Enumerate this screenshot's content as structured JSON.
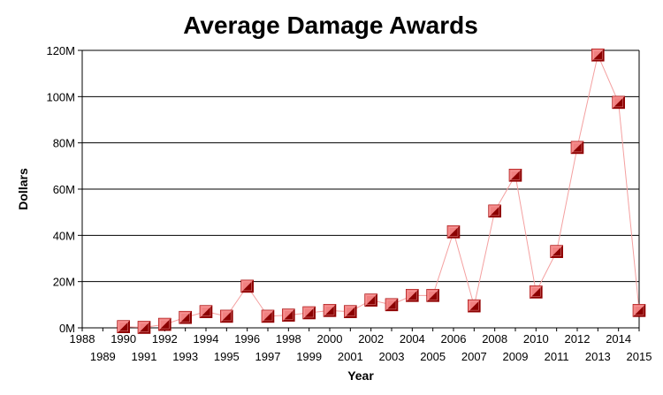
{
  "chart_data": {
    "type": "line",
    "title": "Average Damage Awards",
    "xlabel": "Year",
    "ylabel": "Dollars",
    "xlim": [
      1988,
      2015
    ],
    "ylim": [
      0,
      120000000
    ],
    "x_ticks": [
      "1988",
      "1989",
      "1990",
      "1991",
      "1992",
      "1993",
      "1994",
      "1995",
      "1996",
      "1997",
      "1998",
      "1999",
      "2000",
      "2001",
      "2002",
      "2003",
      "2004",
      "2005",
      "2006",
      "2007",
      "2008",
      "2009",
      "2010",
      "2011",
      "2012",
      "2013",
      "2014",
      "2015"
    ],
    "y_ticks": [
      {
        "value": 0,
        "label": "0M"
      },
      {
        "value": 20000000,
        "label": "20M"
      },
      {
        "value": 40000000,
        "label": "40M"
      },
      {
        "value": 60000000,
        "label": "60M"
      },
      {
        "value": 80000000,
        "label": "80M"
      },
      {
        "value": 100000000,
        "label": "100M"
      },
      {
        "value": 120000000,
        "label": "120M"
      }
    ],
    "grid": true,
    "series": [
      {
        "x": [
          1990,
          1991,
          1992,
          1993,
          1994,
          1995,
          1996,
          1997,
          1998,
          1999,
          2000,
          2001,
          2002,
          2003,
          2004,
          2005,
          2006,
          2007,
          2008,
          2009,
          2010,
          2011,
          2012,
          2013,
          2014,
          2015
        ],
        "values": [
          500000,
          200000,
          1500000,
          4500000,
          7000000,
          5000000,
          18000000,
          5000000,
          5500000,
          6500000,
          7500000,
          7000000,
          12000000,
          10000000,
          14000000,
          14000000,
          41500000,
          9500000,
          50500000,
          66000000,
          15500000,
          33000000,
          78000000,
          118000000,
          97500000,
          7500000
        ],
        "color": "#e85a5a",
        "marker_color_light": "#f08080",
        "marker_color_dark": "#8b0000",
        "line_color": "#f4a0a0"
      }
    ]
  }
}
